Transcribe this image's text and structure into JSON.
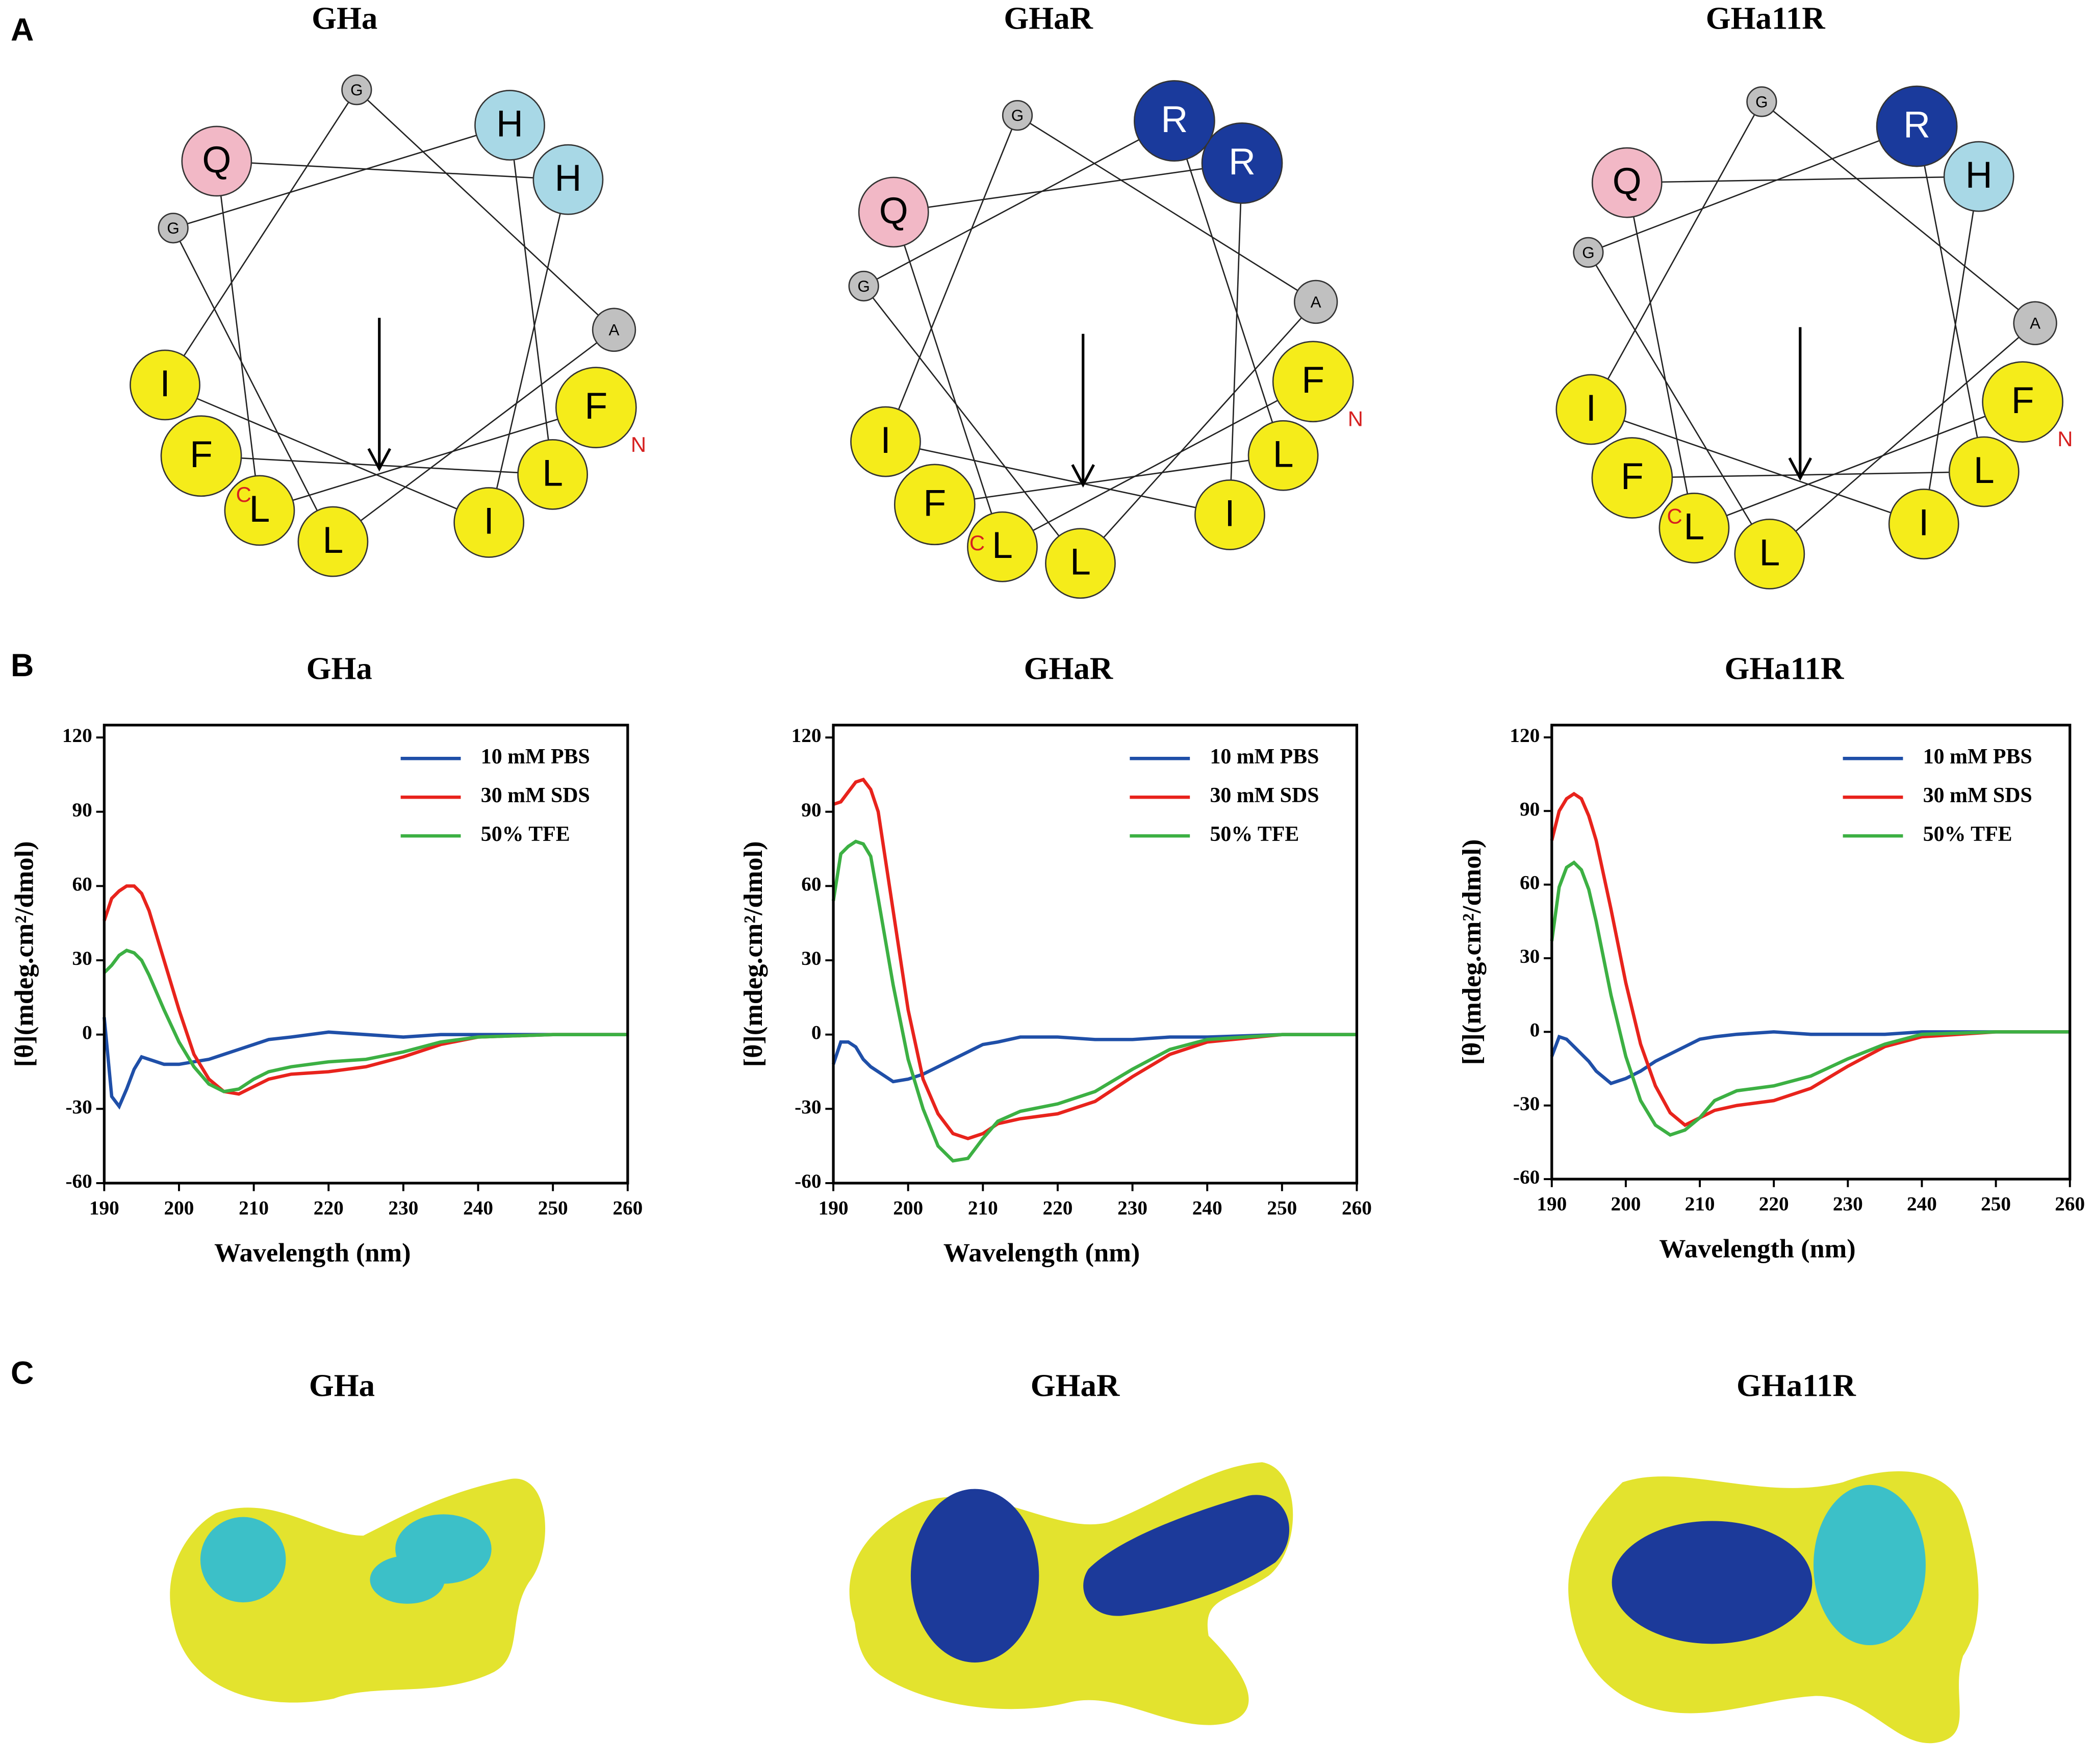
{
  "panel_labels": [
    "A",
    "B",
    "C"
  ],
  "wheels": [
    {
      "title": "GHa",
      "residues": [
        "F",
        "L",
        "Q",
        "H",
        "I",
        "I",
        "G",
        "A",
        "L",
        "G",
        "H",
        "L",
        "F"
      ],
      "n_label": "N",
      "c_label": "C"
    },
    {
      "title": "GHaR",
      "residues": [
        "F",
        "L",
        "Q",
        "R",
        "I",
        "I",
        "G",
        "A",
        "L",
        "G",
        "R",
        "L",
        "F"
      ],
      "n_label": "N",
      "c_label": "C"
    },
    {
      "title": "GHa11R",
      "residues": [
        "F",
        "L",
        "Q",
        "H",
        "I",
        "I",
        "G",
        "A",
        "L",
        "G",
        "R",
        "L",
        "F"
      ],
      "n_label": "N",
      "c_label": "C"
    }
  ],
  "chart_data": [
    {
      "type": "line",
      "title": "GHa",
      "x_label": "Wavelength (nm)",
      "y_label": "[θ](mdeg.cm²/dmol)",
      "x": [
        190,
        191,
        192,
        193,
        194,
        195,
        196,
        198,
        200,
        202,
        204,
        206,
        208,
        210,
        212,
        215,
        220,
        225,
        230,
        235,
        240,
        250,
        260
      ],
      "series": [
        {
          "name": "10 mM PBS",
          "color": "#1f4fa8",
          "values": [
            7,
            -25,
            -29,
            -22,
            -14,
            -9,
            -10,
            -12,
            -12,
            -11,
            -10,
            -8,
            -6,
            -4,
            -2,
            -1,
            1,
            0,
            -1,
            0,
            0,
            0,
            0
          ]
        },
        {
          "name": "30 mM SDS",
          "color": "#e8231c",
          "values": [
            46,
            55,
            58,
            60,
            60,
            57,
            50,
            30,
            10,
            -8,
            -18,
            -23,
            -24,
            -21,
            -18,
            -16,
            -15,
            -13,
            -9,
            -4,
            -1,
            0,
            0
          ]
        },
        {
          "name": "50%  TFE",
          "color": "#3cb043",
          "values": [
            25,
            28,
            32,
            34,
            33,
            30,
            24,
            10,
            -3,
            -13,
            -20,
            -23,
            -22,
            -18,
            -15,
            -13,
            -11,
            -10,
            -7,
            -3,
            -1,
            0,
            0
          ]
        }
      ],
      "xlim": [
        190,
        260
      ],
      "ylim": [
        -60,
        125
      ],
      "xticks": [
        190,
        200,
        210,
        220,
        230,
        240,
        250,
        260
      ],
      "yticks": [
        -60,
        -30,
        0,
        30,
        60,
        90,
        120
      ],
      "legend": "upper right"
    },
    {
      "type": "line",
      "title": "GHaR",
      "x_label": "Wavelength (nm)",
      "y_label": "[θ](mdeg.cm²/dmol)",
      "x": [
        190,
        191,
        192,
        193,
        194,
        195,
        196,
        198,
        200,
        202,
        204,
        206,
        208,
        210,
        212,
        215,
        220,
        225,
        230,
        235,
        240,
        250,
        260
      ],
      "series": [
        {
          "name": "10 mM PBS",
          "color": "#1f4fa8",
          "values": [
            -12,
            -3,
            -3,
            -5,
            -10,
            -13,
            -15,
            -19,
            -18,
            -16,
            -13,
            -10,
            -7,
            -4,
            -3,
            -1,
            -1,
            -2,
            -2,
            -1,
            -1,
            0,
            0
          ]
        },
        {
          "name": "30 mM SDS",
          "color": "#e8231c",
          "values": [
            93,
            94,
            98,
            102,
            103,
            99,
            90,
            50,
            10,
            -18,
            -32,
            -40,
            -42,
            -40,
            -36,
            -34,
            -32,
            -27,
            -17,
            -8,
            -3,
            0,
            0
          ]
        },
        {
          "name": "50%  TFE",
          "color": "#3cb043",
          "values": [
            54,
            73,
            76,
            78,
            77,
            72,
            55,
            20,
            -10,
            -30,
            -45,
            -51,
            -50,
            -42,
            -35,
            -31,
            -28,
            -23,
            -14,
            -6,
            -2,
            0,
            0
          ]
        }
      ],
      "xlim": [
        190,
        260
      ],
      "ylim": [
        -60,
        125
      ],
      "xticks": [
        190,
        200,
        210,
        220,
        230,
        240,
        250,
        260
      ],
      "yticks": [
        -60,
        -30,
        0,
        30,
        60,
        90,
        120
      ],
      "legend": "upper right"
    },
    {
      "type": "line",
      "title": "GHa11R",
      "x_label": "Wavelength (nm)",
      "y_label": "[θ](mdeg.cm²/dmol)",
      "x": [
        190,
        191,
        192,
        193,
        194,
        195,
        196,
        198,
        200,
        202,
        204,
        206,
        208,
        210,
        212,
        215,
        220,
        225,
        230,
        235,
        240,
        250,
        260
      ],
      "series": [
        {
          "name": "10 mM PBS",
          "color": "#1f4fa8",
          "values": [
            -10,
            -2,
            -3,
            -6,
            -9,
            -12,
            -16,
            -21,
            -19,
            -16,
            -12,
            -9,
            -6,
            -3,
            -2,
            -1,
            0,
            -1,
            -1,
            -1,
            0,
            0,
            0
          ]
        },
        {
          "name": "30 mM SDS",
          "color": "#e8231c",
          "values": [
            78,
            90,
            95,
            97,
            95,
            88,
            78,
            50,
            20,
            -5,
            -22,
            -33,
            -38,
            -35,
            -32,
            -30,
            -28,
            -23,
            -14,
            -6,
            -2,
            0,
            0
          ]
        },
        {
          "name": "50%  TFE",
          "color": "#3cb043",
          "values": [
            37,
            59,
            67,
            69,
            66,
            58,
            45,
            15,
            -10,
            -28,
            -38,
            -42,
            -40,
            -35,
            -28,
            -24,
            -22,
            -18,
            -11,
            -5,
            -1,
            0,
            0
          ]
        }
      ],
      "xlim": [
        190,
        260
      ],
      "ylim": [
        -60,
        125
      ],
      "xticks": [
        190,
        200,
        210,
        220,
        230,
        240,
        250,
        260
      ],
      "yticks": [
        -60,
        -30,
        0,
        30,
        60,
        90,
        120
      ],
      "legend": "upper right"
    }
  ],
  "surfaces": [
    {
      "title": "GHa"
    },
    {
      "title": "GHaR"
    },
    {
      "title": "GHa11R"
    }
  ]
}
